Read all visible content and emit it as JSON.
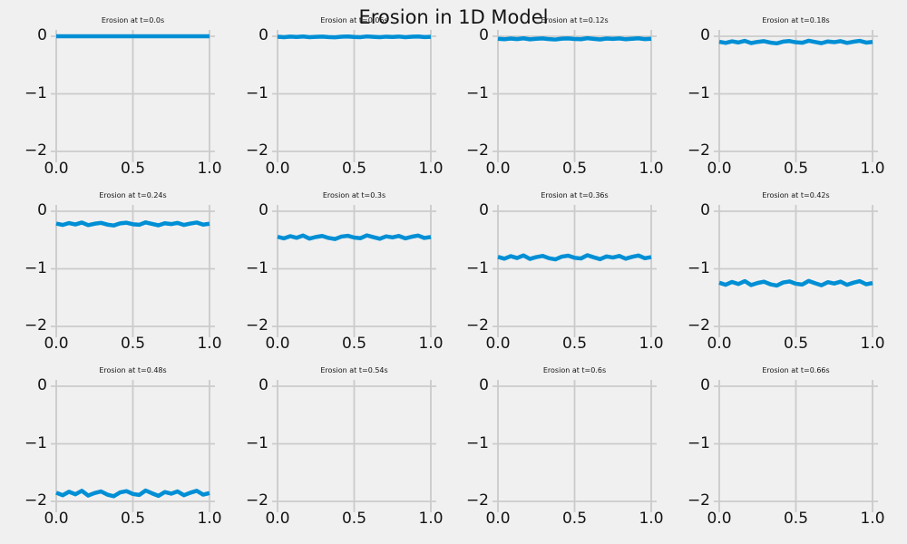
{
  "figure": {
    "suptitle": "Erosion in 1D Model",
    "colors": {
      "background": "#f0f0f0",
      "line": "#008fd5",
      "grid": "#cbcbcb",
      "text": "#141414"
    }
  },
  "axes": {
    "x_range": [
      0.0,
      1.0
    ],
    "y_range": [
      -2,
      0
    ],
    "x_ticks": [
      "0.0",
      "0.5",
      "1.0"
    ],
    "y_ticks": [
      "0",
      "−1",
      "−2"
    ],
    "grid": true,
    "legend": false
  },
  "chart_data": {
    "type": "line",
    "layout_grid": {
      "rows": 3,
      "cols": 4
    },
    "x_description": "points evenly spaced over x_range [0, 1]",
    "subplots": [
      {
        "title": "Erosion at t=0.0s",
        "t": 0.0,
        "mean_depth": 0.0,
        "line_visible": true,
        "y": [
          0,
          0,
          0,
          0,
          0,
          0,
          0,
          0,
          0,
          0,
          0,
          0,
          0,
          0,
          0,
          0,
          0,
          0,
          0,
          0,
          0,
          0,
          0,
          0,
          0
        ]
      },
      {
        "title": "Erosion at t=0.06s",
        "t": 0.06,
        "mean_depth": -0.01,
        "line_visible": true,
        "y": [
          -0.008,
          -0.015,
          -0.006,
          -0.012,
          -0.004,
          -0.016,
          -0.009,
          -0.005,
          -0.013,
          -0.017,
          -0.008,
          -0.004,
          -0.012,
          -0.015,
          -0.003,
          -0.01,
          -0.016,
          -0.007,
          -0.011,
          -0.005,
          -0.015,
          -0.008,
          -0.004,
          -0.013,
          -0.009
        ]
      },
      {
        "title": "Erosion at t=0.12s",
        "t": 0.12,
        "mean_depth": -0.045,
        "line_visible": true,
        "y": [
          -0.043,
          -0.052,
          -0.039,
          -0.049,
          -0.035,
          -0.053,
          -0.044,
          -0.038,
          -0.05,
          -0.056,
          -0.041,
          -0.037,
          -0.047,
          -0.051,
          -0.034,
          -0.045,
          -0.055,
          -0.04,
          -0.046,
          -0.038,
          -0.052,
          -0.043,
          -0.035,
          -0.05,
          -0.044
        ]
      },
      {
        "title": "Erosion at t=0.18s",
        "t": 0.18,
        "mean_depth": -0.1,
        "line_visible": true,
        "y": [
          -0.095,
          -0.115,
          -0.088,
          -0.108,
          -0.08,
          -0.118,
          -0.098,
          -0.085,
          -0.11,
          -0.123,
          -0.093,
          -0.083,
          -0.105,
          -0.113,
          -0.078,
          -0.1,
          -0.12,
          -0.09,
          -0.103,
          -0.085,
          -0.115,
          -0.095,
          -0.08,
          -0.11,
          -0.098
        ]
      },
      {
        "title": "Erosion at t=0.24s",
        "t": 0.24,
        "mean_depth": -0.22,
        "line_visible": true,
        "y": [
          -0.214,
          -0.238,
          -0.205,
          -0.229,
          -0.196,
          -0.241,
          -0.217,
          -0.202,
          -0.232,
          -0.247,
          -0.211,
          -0.199,
          -0.226,
          -0.235,
          -0.193,
          -0.22,
          -0.244,
          -0.208,
          -0.223,
          -0.202,
          -0.238,
          -0.214,
          -0.196,
          -0.232,
          -0.217
        ]
      },
      {
        "title": "Erosion at t=0.3s",
        "t": 0.3,
        "mean_depth": -0.45,
        "line_visible": true,
        "y": [
          -0.443,
          -0.471,
          -0.433,
          -0.461,
          -0.422,
          -0.475,
          -0.447,
          -0.429,
          -0.464,
          -0.482,
          -0.44,
          -0.426,
          -0.457,
          -0.468,
          -0.419,
          -0.45,
          -0.478,
          -0.436,
          -0.454,
          -0.429,
          -0.471,
          -0.443,
          -0.422,
          -0.464,
          -0.447
        ]
      },
      {
        "title": "Erosion at t=0.36s",
        "t": 0.36,
        "mean_depth": -0.8,
        "line_visible": true,
        "y": [
          -0.792,
          -0.824,
          -0.78,
          -0.812,
          -0.768,
          -0.828,
          -0.796,
          -0.776,
          -0.816,
          -0.836,
          -0.788,
          -0.772,
          -0.808,
          -0.82,
          -0.764,
          -0.8,
          -0.832,
          -0.784,
          -0.804,
          -0.776,
          -0.824,
          -0.792,
          -0.768,
          -0.816,
          -0.796
        ]
      },
      {
        "title": "Erosion at t=0.42s",
        "t": 0.42,
        "mean_depth": -1.25,
        "line_visible": true,
        "y": [
          -1.241,
          -1.277,
          -1.228,
          -1.264,
          -1.214,
          -1.282,
          -1.246,
          -1.223,
          -1.268,
          -1.291,
          -1.237,
          -1.219,
          -1.259,
          -1.273,
          -1.21,
          -1.25,
          -1.286,
          -1.232,
          -1.255,
          -1.223,
          -1.277,
          -1.241,
          -1.214,
          -1.268,
          -1.246
        ]
      },
      {
        "title": "Erosion at t=0.48s",
        "t": 0.48,
        "mean_depth": -1.86,
        "line_visible": true,
        "y": [
          -1.849,
          -1.893,
          -1.833,
          -1.877,
          -1.816,
          -1.899,
          -1.855,
          -1.827,
          -1.882,
          -1.91,
          -1.844,
          -1.822,
          -1.871,
          -1.888,
          -1.811,
          -1.86,
          -1.904,
          -1.838,
          -1.866,
          -1.827,
          -1.893,
          -1.849,
          -1.816,
          -1.882,
          -1.855
        ]
      },
      {
        "title": "Erosion at t=0.54s",
        "t": 0.54,
        "line_visible": false,
        "below_y_range": true,
        "y": []
      },
      {
        "title": "Erosion at t=0.6s",
        "t": 0.6,
        "line_visible": false,
        "below_y_range": true,
        "y": []
      },
      {
        "title": "Erosion at t=0.66s",
        "t": 0.66,
        "line_visible": false,
        "below_y_range": true,
        "y": []
      }
    ]
  }
}
